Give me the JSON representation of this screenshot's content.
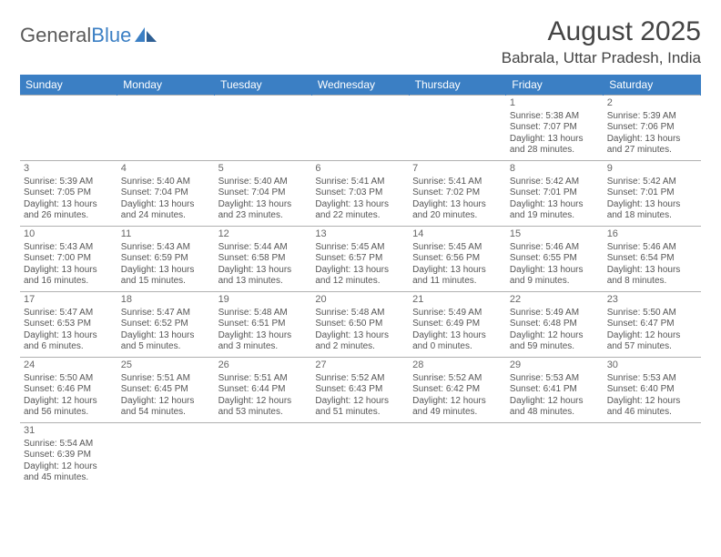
{
  "logo": {
    "text1": "General",
    "text2": "Blue"
  },
  "title": {
    "month": "August 2025",
    "location": "Babrala, Uttar Pradesh, India"
  },
  "colors": {
    "header_bg": "#3b7fc4",
    "border": "#b0b0b0",
    "text": "#555555"
  },
  "weekdays": [
    "Sunday",
    "Monday",
    "Tuesday",
    "Wednesday",
    "Thursday",
    "Friday",
    "Saturday"
  ],
  "startOffset": 5,
  "days": [
    {
      "n": 1,
      "sunrise": "5:38 AM",
      "sunset": "7:07 PM",
      "daylight": "13 hours and 28 minutes."
    },
    {
      "n": 2,
      "sunrise": "5:39 AM",
      "sunset": "7:06 PM",
      "daylight": "13 hours and 27 minutes."
    },
    {
      "n": 3,
      "sunrise": "5:39 AM",
      "sunset": "7:05 PM",
      "daylight": "13 hours and 26 minutes."
    },
    {
      "n": 4,
      "sunrise": "5:40 AM",
      "sunset": "7:04 PM",
      "daylight": "13 hours and 24 minutes."
    },
    {
      "n": 5,
      "sunrise": "5:40 AM",
      "sunset": "7:04 PM",
      "daylight": "13 hours and 23 minutes."
    },
    {
      "n": 6,
      "sunrise": "5:41 AM",
      "sunset": "7:03 PM",
      "daylight": "13 hours and 22 minutes."
    },
    {
      "n": 7,
      "sunrise": "5:41 AM",
      "sunset": "7:02 PM",
      "daylight": "13 hours and 20 minutes."
    },
    {
      "n": 8,
      "sunrise": "5:42 AM",
      "sunset": "7:01 PM",
      "daylight": "13 hours and 19 minutes."
    },
    {
      "n": 9,
      "sunrise": "5:42 AM",
      "sunset": "7:01 PM",
      "daylight": "13 hours and 18 minutes."
    },
    {
      "n": 10,
      "sunrise": "5:43 AM",
      "sunset": "7:00 PM",
      "daylight": "13 hours and 16 minutes."
    },
    {
      "n": 11,
      "sunrise": "5:43 AM",
      "sunset": "6:59 PM",
      "daylight": "13 hours and 15 minutes."
    },
    {
      "n": 12,
      "sunrise": "5:44 AM",
      "sunset": "6:58 PM",
      "daylight": "13 hours and 13 minutes."
    },
    {
      "n": 13,
      "sunrise": "5:45 AM",
      "sunset": "6:57 PM",
      "daylight": "13 hours and 12 minutes."
    },
    {
      "n": 14,
      "sunrise": "5:45 AM",
      "sunset": "6:56 PM",
      "daylight": "13 hours and 11 minutes."
    },
    {
      "n": 15,
      "sunrise": "5:46 AM",
      "sunset": "6:55 PM",
      "daylight": "13 hours and 9 minutes."
    },
    {
      "n": 16,
      "sunrise": "5:46 AM",
      "sunset": "6:54 PM",
      "daylight": "13 hours and 8 minutes."
    },
    {
      "n": 17,
      "sunrise": "5:47 AM",
      "sunset": "6:53 PM",
      "daylight": "13 hours and 6 minutes."
    },
    {
      "n": 18,
      "sunrise": "5:47 AM",
      "sunset": "6:52 PM",
      "daylight": "13 hours and 5 minutes."
    },
    {
      "n": 19,
      "sunrise": "5:48 AM",
      "sunset": "6:51 PM",
      "daylight": "13 hours and 3 minutes."
    },
    {
      "n": 20,
      "sunrise": "5:48 AM",
      "sunset": "6:50 PM",
      "daylight": "13 hours and 2 minutes."
    },
    {
      "n": 21,
      "sunrise": "5:49 AM",
      "sunset": "6:49 PM",
      "daylight": "13 hours and 0 minutes."
    },
    {
      "n": 22,
      "sunrise": "5:49 AM",
      "sunset": "6:48 PM",
      "daylight": "12 hours and 59 minutes."
    },
    {
      "n": 23,
      "sunrise": "5:50 AM",
      "sunset": "6:47 PM",
      "daylight": "12 hours and 57 minutes."
    },
    {
      "n": 24,
      "sunrise": "5:50 AM",
      "sunset": "6:46 PM",
      "daylight": "12 hours and 56 minutes."
    },
    {
      "n": 25,
      "sunrise": "5:51 AM",
      "sunset": "6:45 PM",
      "daylight": "12 hours and 54 minutes."
    },
    {
      "n": 26,
      "sunrise": "5:51 AM",
      "sunset": "6:44 PM",
      "daylight": "12 hours and 53 minutes."
    },
    {
      "n": 27,
      "sunrise": "5:52 AM",
      "sunset": "6:43 PM",
      "daylight": "12 hours and 51 minutes."
    },
    {
      "n": 28,
      "sunrise": "5:52 AM",
      "sunset": "6:42 PM",
      "daylight": "12 hours and 49 minutes."
    },
    {
      "n": 29,
      "sunrise": "5:53 AM",
      "sunset": "6:41 PM",
      "daylight": "12 hours and 48 minutes."
    },
    {
      "n": 30,
      "sunrise": "5:53 AM",
      "sunset": "6:40 PM",
      "daylight": "12 hours and 46 minutes."
    },
    {
      "n": 31,
      "sunrise": "5:54 AM",
      "sunset": "6:39 PM",
      "daylight": "12 hours and 45 minutes."
    }
  ],
  "labels": {
    "sunrise": "Sunrise: ",
    "sunset": "Sunset: ",
    "daylight": "Daylight: "
  }
}
